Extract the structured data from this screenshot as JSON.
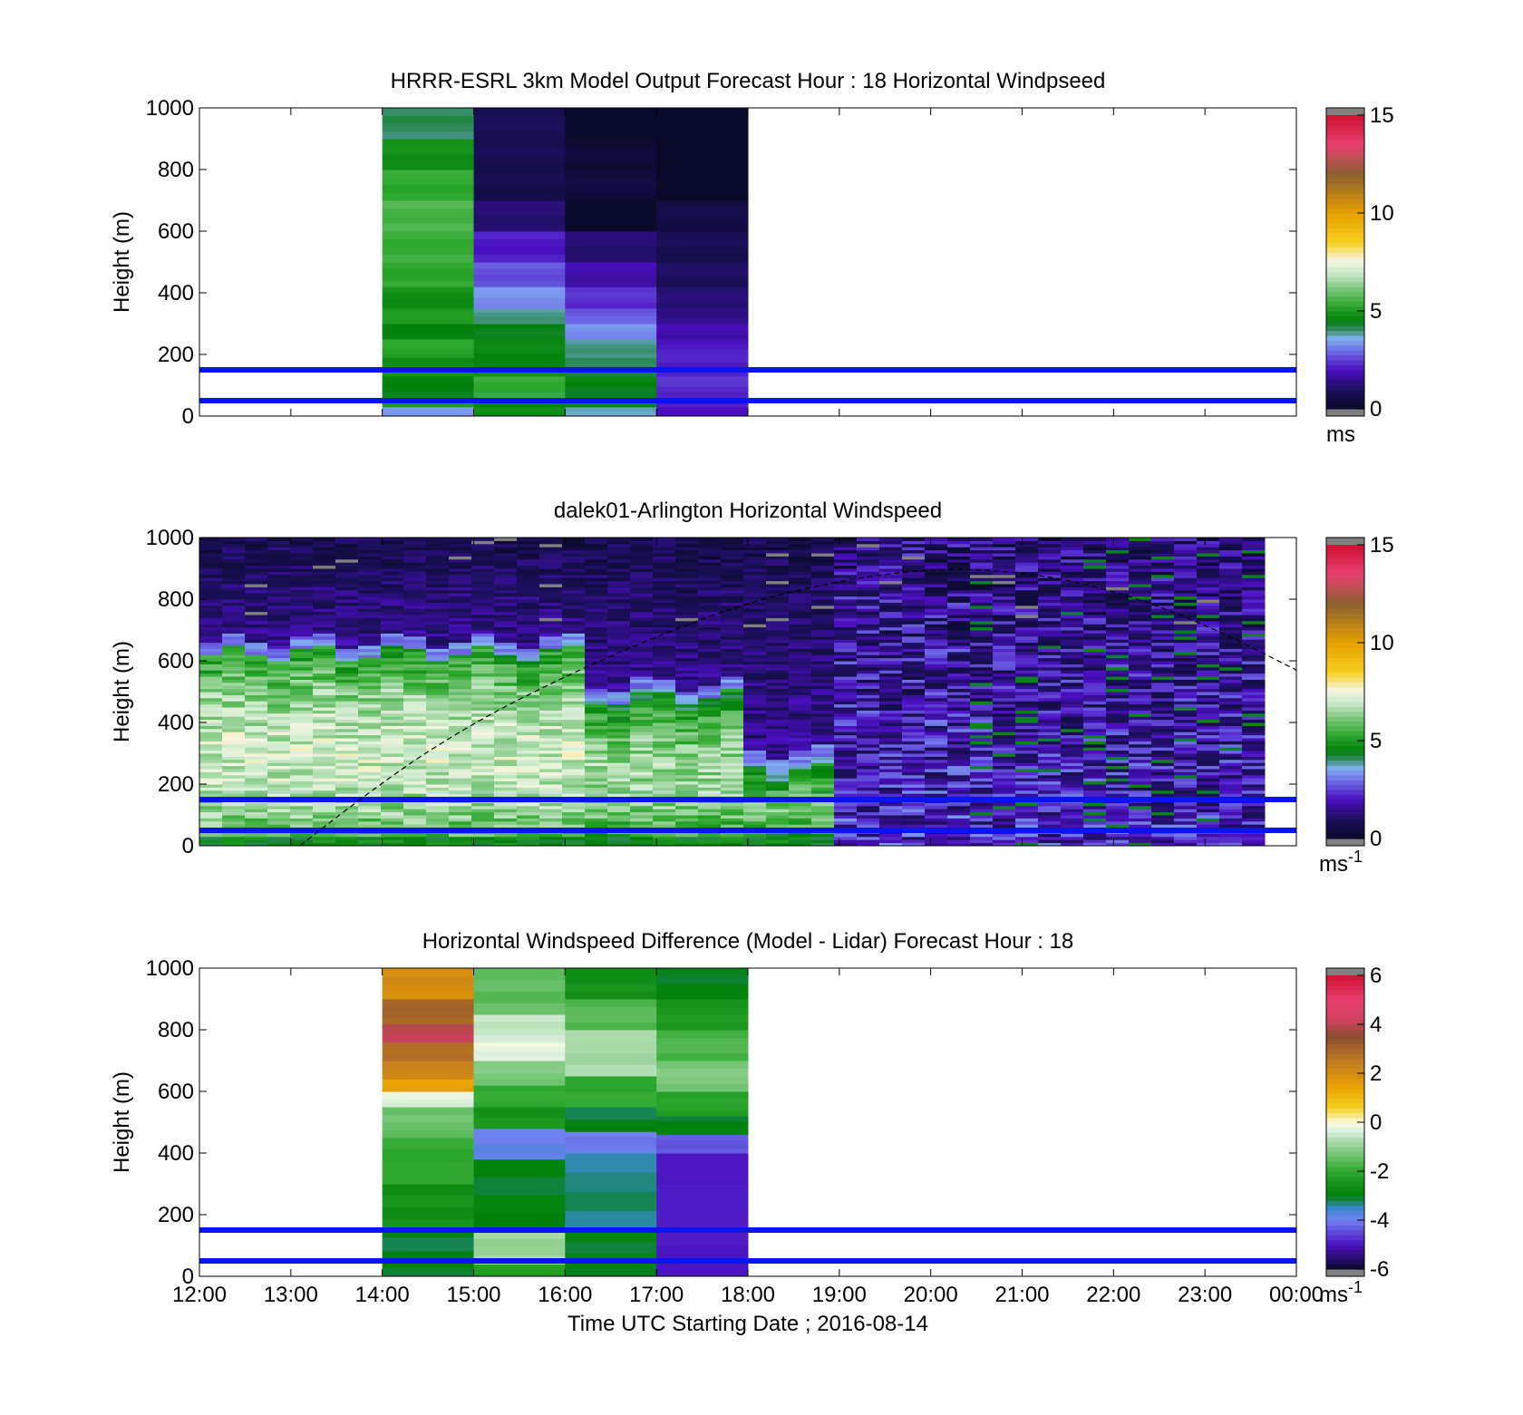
{
  "chart_data": [
    {
      "type": "heatmap",
      "title": "HRRR-ESRL 3km Model Output   Forecast Hour : 18 Horizontal Windpseed",
      "ylabel": "Height (m)",
      "xlabel": "",
      "xlim": [
        "12:00",
        "00:00"
      ],
      "ylim": [
        0,
        1000
      ],
      "yticks": [
        "0",
        "200",
        "400",
        "600",
        "800",
        "1000"
      ],
      "colorbar": {
        "range": [
          0,
          15
        ],
        "ticks": [
          "0",
          "5",
          "10",
          "15"
        ],
        "unit": "ms"
      },
      "reference_lines_m": [
        50,
        150
      ],
      "columns": [
        {
          "start": "14:00",
          "end": "15:00",
          "cells": [
            [
              0,
              30,
              3.5
            ],
            [
              30,
              60,
              5
            ],
            [
              60,
              130,
              4.6
            ],
            [
              130,
              190,
              4.8
            ],
            [
              190,
              250,
              5.2
            ],
            [
              250,
              300,
              4.6
            ],
            [
              300,
              350,
              5
            ],
            [
              350,
              420,
              4.8
            ],
            [
              420,
              500,
              5.3
            ],
            [
              500,
              600,
              5.4
            ],
            [
              600,
              700,
              5.6
            ],
            [
              700,
              800,
              5.3
            ],
            [
              800,
              900,
              4.8
            ],
            [
              900,
              1000,
              4.1
            ]
          ]
        },
        {
          "start": "15:00",
          "end": "16:00",
          "cells": [
            [
              0,
              30,
              4.8
            ],
            [
              30,
              60,
              4.5
            ],
            [
              60,
              130,
              5.4
            ],
            [
              130,
              190,
              4.7
            ],
            [
              190,
              250,
              4.6
            ],
            [
              250,
              300,
              4.5
            ],
            [
              300,
              350,
              3.9
            ],
            [
              350,
              420,
              3.3
            ],
            [
              420,
              500,
              2.7
            ],
            [
              500,
              600,
              2.1
            ],
            [
              600,
              700,
              1.2
            ],
            [
              700,
              800,
              0.7
            ],
            [
              800,
              900,
              0.8
            ],
            [
              900,
              1000,
              0.9
            ]
          ]
        },
        {
          "start": "16:00",
          "end": "17:00",
          "cells": [
            [
              0,
              30,
              3.7
            ],
            [
              30,
              60,
              4.3
            ],
            [
              60,
              130,
              4.5
            ],
            [
              130,
              190,
              4.2
            ],
            [
              190,
              250,
              3.9
            ],
            [
              250,
              300,
              3.3
            ],
            [
              300,
              350,
              2.8
            ],
            [
              350,
              420,
              2.3
            ],
            [
              420,
              500,
              1.8
            ],
            [
              500,
              600,
              1.2
            ],
            [
              600,
              700,
              -1
            ],
            [
              700,
              800,
              0.4
            ],
            [
              800,
              900,
              0.3
            ],
            [
              900,
              1000,
              -1
            ]
          ]
        },
        {
          "start": "17:00",
          "end": "18:00",
          "cells": [
            [
              0,
              30,
              1.9
            ],
            [
              30,
              60,
              2.1
            ],
            [
              60,
              130,
              2.3
            ],
            [
              130,
              190,
              2.2
            ],
            [
              190,
              250,
              2.1
            ],
            [
              250,
              300,
              1.8
            ],
            [
              300,
              350,
              1.5
            ],
            [
              350,
              420,
              1.2
            ],
            [
              420,
              500,
              1
            ],
            [
              500,
              600,
              0.8
            ],
            [
              600,
              700,
              0.6
            ],
            [
              700,
              800,
              -1
            ],
            [
              800,
              900,
              -1
            ],
            [
              900,
              1000,
              -1
            ]
          ]
        }
      ]
    },
    {
      "type": "heatmap",
      "title": "dalek01-Arlington  Horizontal Windspeed",
      "ylabel": "Height (m)",
      "xlabel": "",
      "xlim": [
        "12:00",
        "00:00"
      ],
      "ylim": [
        0,
        1000
      ],
      "yticks": [
        "0",
        "200",
        "400",
        "600",
        "800",
        "1000"
      ],
      "colorbar": {
        "range": [
          0,
          15
        ],
        "ticks": [
          "0",
          "5",
          "10",
          "15"
        ],
        "unit": "ms-1"
      },
      "reference_lines_m": [
        50,
        150
      ],
      "boundary_curve": {
        "description": "dashed curve",
        "x_hours": [
          13.1,
          14,
          15,
          16,
          17,
          18,
          19,
          20,
          21,
          22,
          23,
          24
        ],
        "y_m": [
          0,
          210,
          400,
          550,
          680,
          790,
          860,
          900,
          890,
          830,
          720,
          570
        ]
      },
      "profile_segments": [
        {
          "start": "12:00",
          "end": "16:15",
          "surface": 5.5,
          "top_of_green_m": 620,
          "aloft": 1.2
        },
        {
          "start": "16:15",
          "end": "18:00",
          "surface": 5.0,
          "top_of_green_m": 480,
          "aloft": 1.4
        },
        {
          "start": "18:00",
          "end": "19:00",
          "surface": 4.4,
          "top_of_green_m": 260,
          "aloft": 1.6
        },
        {
          "start": "19:00",
          "end": "00:00",
          "surface": 2.6,
          "top_of_green_m": 0,
          "aloft": 1.8
        }
      ]
    },
    {
      "type": "heatmap",
      "title": "Horizontal Windspeed Difference (Model - Lidar) Forecast Hour : 18",
      "ylabel": "Height (m)",
      "xlabel": "Time UTC  Starting Date ; 2016-08-14",
      "xlim": [
        "12:00",
        "00:00"
      ],
      "xticks": [
        "12:00",
        "13:00",
        "14:00",
        "15:00",
        "16:00",
        "17:00",
        "18:00",
        "19:00",
        "20:00",
        "21:00",
        "22:00",
        "23:00",
        "00:00"
      ],
      "ylim": [
        0,
        1000
      ],
      "yticks": [
        "0",
        "200",
        "400",
        "600",
        "800",
        "1000"
      ],
      "colorbar": {
        "range": [
          -6,
          6
        ],
        "ticks": [
          "-6",
          "-4",
          "-2",
          "0",
          "2",
          "4",
          "6"
        ],
        "unit": "ms-1"
      },
      "reference_lines_m": [
        50,
        150
      ],
      "columns": [
        {
          "start": "14:00",
          "end": "15:00",
          "cells": [
            [
              0,
              60,
              -3
            ],
            [
              60,
              150,
              -3.1
            ],
            [
              150,
              300,
              -2.6
            ],
            [
              300,
              450,
              -2
            ],
            [
              450,
              550,
              -1.4
            ],
            [
              550,
              600,
              -0.3
            ],
            [
              600,
              640,
              1.5
            ],
            [
              640,
              700,
              2.2
            ],
            [
              700,
              760,
              2.8
            ],
            [
              760,
              820,
              4
            ],
            [
              820,
              900,
              3
            ],
            [
              900,
              1000,
              2
            ]
          ]
        },
        {
          "start": "15:00",
          "end": "16:00",
          "cells": [
            [
              0,
              40,
              -2.2
            ],
            [
              40,
              150,
              -0.9
            ],
            [
              150,
              380,
              -3
            ],
            [
              380,
              480,
              -3.9
            ],
            [
              480,
              550,
              -2.5
            ],
            [
              550,
              620,
              -2
            ],
            [
              620,
              700,
              -1.2
            ],
            [
              700,
              760,
              -0.2
            ],
            [
              760,
              850,
              -0.5
            ],
            [
              850,
              1000,
              -1.5
            ]
          ]
        },
        {
          "start": "16:00",
          "end": "17:00",
          "cells": [
            [
              0,
              150,
              -3
            ],
            [
              150,
              400,
              -3.3
            ],
            [
              400,
              470,
              -4
            ],
            [
              470,
              550,
              -3.1
            ],
            [
              550,
              650,
              -2
            ],
            [
              650,
              800,
              -0.8
            ],
            [
              800,
              900,
              -1.6
            ],
            [
              900,
              1000,
              -2.6
            ]
          ]
        },
        {
          "start": "17:00",
          "end": "18:00",
          "cells": [
            [
              0,
              400,
              -5
            ],
            [
              400,
              460,
              -4.3
            ],
            [
              460,
              520,
              -3
            ],
            [
              520,
              600,
              -2.2
            ],
            [
              600,
              700,
              -1.2
            ],
            [
              700,
              800,
              -1.7
            ],
            [
              800,
              900,
              -2.4
            ],
            [
              900,
              1000,
              -3
            ]
          ]
        }
      ]
    }
  ]
}
